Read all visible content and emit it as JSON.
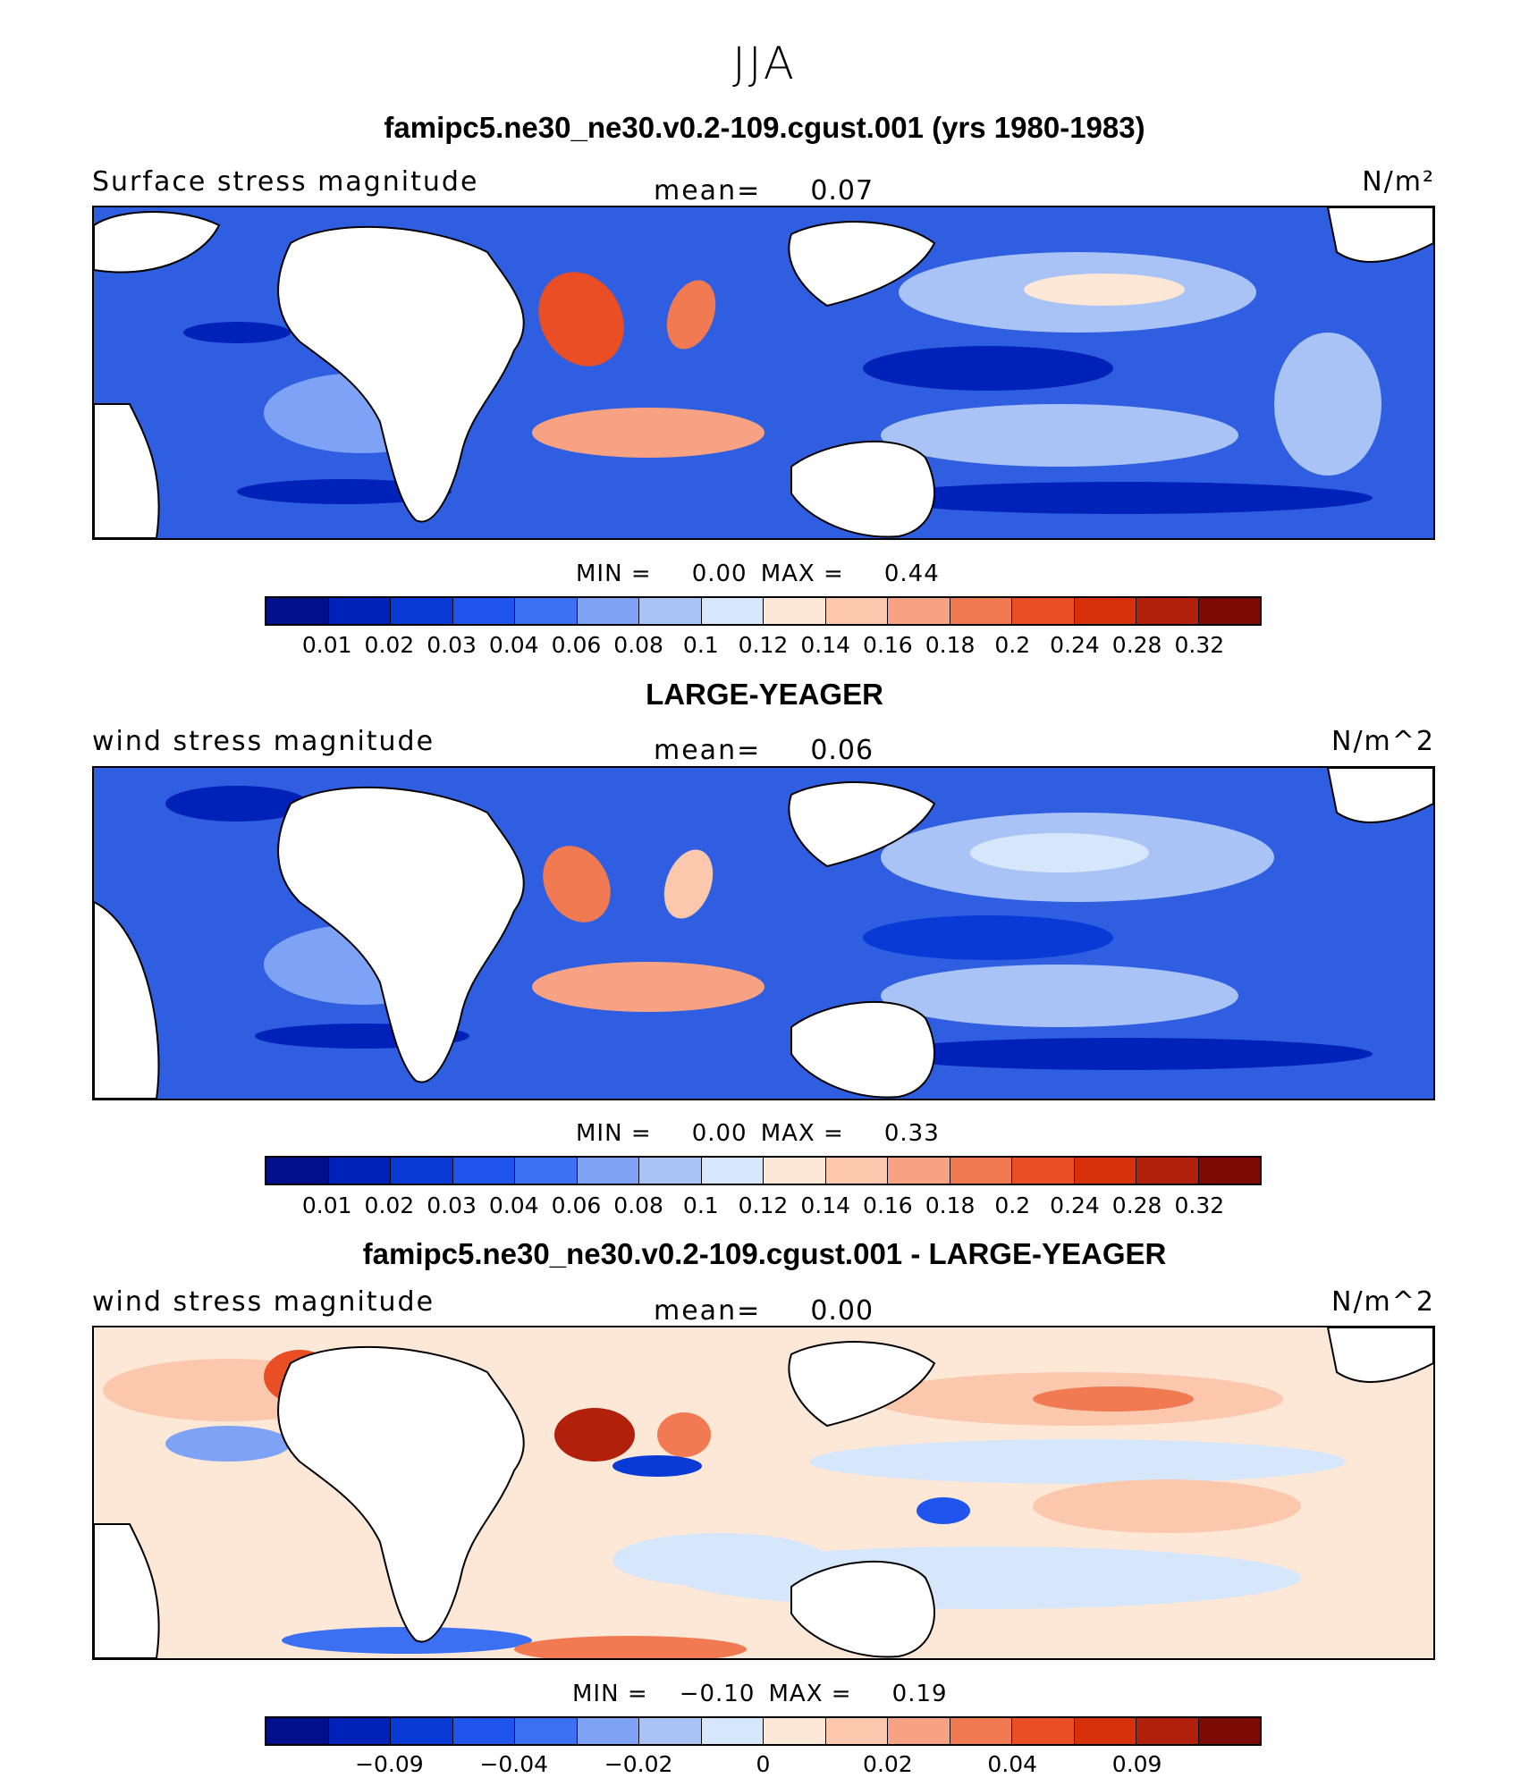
{
  "figure": {
    "season": "JJA"
  },
  "panels": [
    {
      "title": "famipc5.ne30_ne30.v0.2-109.cgust.001 (yrs 1980-1983)",
      "variable": "Surface stress magnitude",
      "mean_label": "mean=",
      "mean_value": "0.07",
      "units": "N/m²",
      "min_label": "MIN =",
      "min_value": "0.00",
      "max_label": "MAX =",
      "max_value": "0.44",
      "colorbar": {
        "colors": [
          "#00108a",
          "#0022b8",
          "#0a3ad6",
          "#1f55ec",
          "#3b70f2",
          "#7ea3f6",
          "#a9c3f7",
          "#d6e6fb",
          "#fde7d7",
          "#fbc8ae",
          "#f7a383",
          "#f27a52",
          "#ea4e24",
          "#d7310c",
          "#b0200b",
          "#7d0b05"
        ],
        "ticks": [
          "0.01",
          "0.02",
          "0.03",
          "0.04",
          "0.06",
          "0.08",
          "0.1",
          "0.12",
          "0.14",
          "0.16",
          "0.18",
          "0.2",
          "0.24",
          "0.28",
          "0.32"
        ]
      }
    },
    {
      "title": "LARGE-YEAGER",
      "variable": "wind stress magnitude",
      "mean_label": "mean=",
      "mean_value": "0.06",
      "units": "N/m^2",
      "min_label": "MIN =",
      "min_value": "0.00",
      "max_label": "MAX =",
      "max_value": "0.33",
      "colorbar": {
        "colors": [
          "#00108a",
          "#0022b8",
          "#0a3ad6",
          "#1f55ec",
          "#3b70f2",
          "#7ea3f6",
          "#a9c3f7",
          "#d6e6fb",
          "#fde7d7",
          "#fbc8ae",
          "#f7a383",
          "#f27a52",
          "#ea4e24",
          "#d7310c",
          "#b0200b",
          "#7d0b05"
        ],
        "ticks": [
          "0.01",
          "0.02",
          "0.03",
          "0.04",
          "0.06",
          "0.08",
          "0.1",
          "0.12",
          "0.14",
          "0.16",
          "0.18",
          "0.2",
          "0.24",
          "0.28",
          "0.32"
        ]
      }
    },
    {
      "title": "famipc5.ne30_ne30.v0.2-109.cgust.001 - LARGE-YEAGER",
      "variable": "wind stress magnitude",
      "mean_label": "mean=",
      "mean_value": "0.00",
      "units": "N/m^2",
      "min_label": "MIN =",
      "min_value": "−0.10",
      "max_label": "MAX =",
      "max_value": "0.19",
      "colorbar": {
        "colors": [
          "#00108a",
          "#0022b8",
          "#0a3ad6",
          "#1f55ec",
          "#3b70f2",
          "#7ea3f6",
          "#a9c3f7",
          "#d6e6fb",
          "#fde7d7",
          "#fbc8ae",
          "#f7a383",
          "#f27a52",
          "#ea4e24",
          "#d7310c",
          "#b0200b",
          "#7d0b05"
        ],
        "ticks": [
          "−0.09",
          "−0.04",
          "−0.02",
          "0",
          "0.02",
          "0.04",
          "0.09"
        ]
      }
    }
  ]
}
